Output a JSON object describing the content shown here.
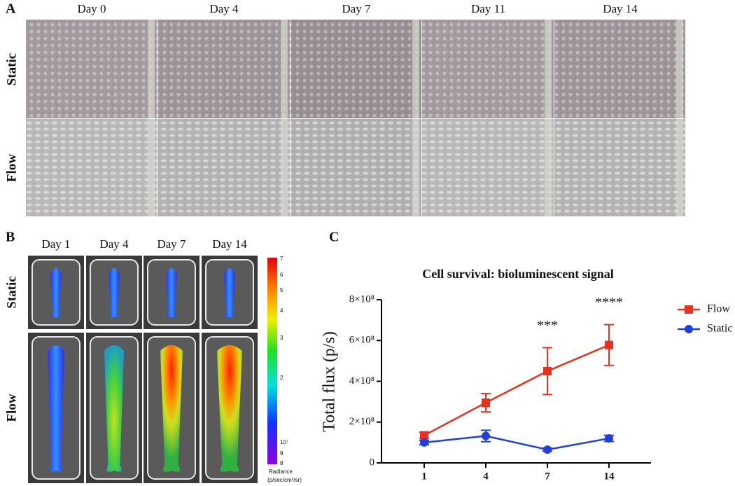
{
  "panel_a": {
    "label": "A",
    "columns": [
      "Day 0",
      "Day 4",
      "Day  7",
      "Day 11",
      "Day 14"
    ],
    "rows": [
      "Static",
      "Flow"
    ]
  },
  "panel_b": {
    "label": "B",
    "columns": [
      "Day 1",
      "Day 4",
      "Day 7",
      "Day 14"
    ],
    "rows": [
      "Static",
      "Flow"
    ],
    "colorbar": {
      "ticks": [
        "7",
        "6",
        "5",
        "4",
        "3",
        "2",
        "10⁷",
        "9",
        "8"
      ],
      "title": "Radiance",
      "unit": "(p/sec/cm²/sr)"
    }
  },
  "panel_c": {
    "label": "C"
  },
  "chart_data": {
    "type": "line",
    "title": "Cell survival: bioluminescent signal",
    "y_label": "Total flux (p/s)",
    "categories": [
      "1",
      "4",
      "7",
      "14"
    ],
    "series": [
      {
        "name": "Flow",
        "color": "#e8301c",
        "marker": "square",
        "values": [
          135000000,
          295000000,
          450000000,
          578000000
        ],
        "errors": [
          15000000,
          45000000,
          115000000,
          100000000
        ]
      },
      {
        "name": "Static",
        "color": "#1f3fe0",
        "marker": "circle",
        "values": [
          100000000,
          132000000,
          65000000,
          120000000
        ],
        "errors": [
          10000000,
          28000000,
          8000000,
          15000000
        ]
      }
    ],
    "significance": [
      null,
      null,
      "***",
      "****"
    ],
    "ylim": [
      0,
      800000000
    ],
    "yticks": [
      0,
      {
        "value": 200000000,
        "label": "2×10⁸"
      },
      {
        "value": 400000000,
        "label": "4×10⁸"
      },
      {
        "value": 600000000,
        "label": "6×10⁸"
      },
      {
        "value": 800000000,
        "label": "8×10⁸"
      }
    ],
    "legend": "right"
  }
}
